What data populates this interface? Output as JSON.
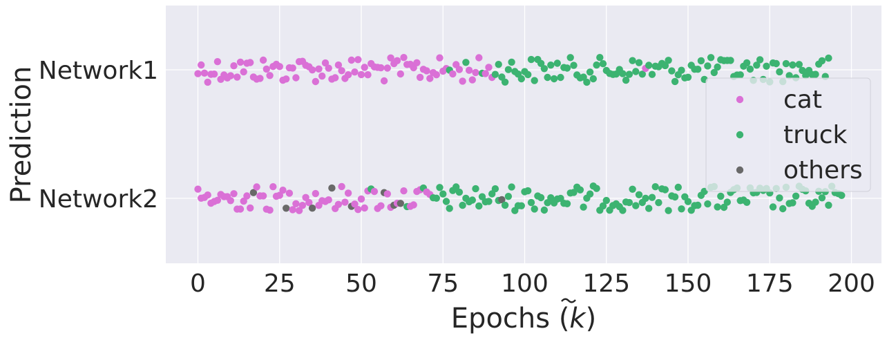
{
  "chart_data": {
    "type": "scatter",
    "xlabel": "Epochs (k̃)",
    "xlabel_parts": {
      "prefix": "Epochs (",
      "symbol": "k",
      "suffix": ")"
    },
    "ylabel": "Prediction",
    "categories": [
      "Network1",
      "Network2"
    ],
    "xlim": [
      -10,
      210
    ],
    "xticks": [
      0,
      25,
      50,
      75,
      100,
      125,
      150,
      175,
      200
    ],
    "grid": true,
    "background": "#eaeaf2",
    "legend": {
      "position": "right",
      "entries": [
        {
          "name": "cat",
          "color": "#da70d6"
        },
        {
          "name": "truck",
          "color": "#3cb371"
        },
        {
          "name": "others",
          "color": "#696969"
        }
      ]
    },
    "series": [
      {
        "category": "Network1",
        "labels_by_epoch": "ccccccccccccccccccccccccccccccccccccccccccccccccccccccccccccccccccccccccccccctcccctcccctcccttttttttttttttttttttttttttttttttttttttttttttttctttttttttttttttttttttttttttttttttttttttttttttttttttttttt"
      },
      {
        "category": "Network2",
        "labels_by_epoch": "cccccccccccccccccocccccccccocccccccocccccocccccoccccctcccoccococtcccctcctttttttttttttttttttttotttttttttttttttttttttttttttttttttttttttttttttttttttttttttttttttttttttttttttttttttttttttttttttttttttttttt"
      }
    ]
  }
}
